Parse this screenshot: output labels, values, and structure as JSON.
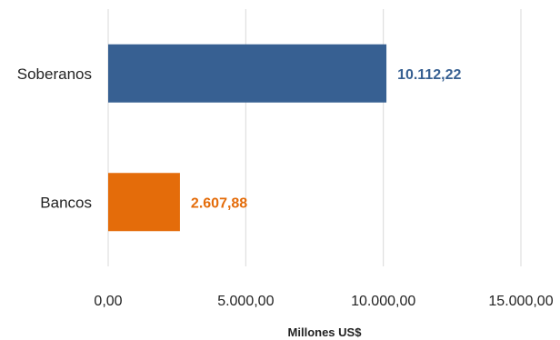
{
  "chart_data": {
    "type": "bar",
    "orientation": "horizontal",
    "categories": [
      "Soberanos",
      "Bancos"
    ],
    "values": [
      10112.22,
      2607.88
    ],
    "value_labels": [
      "10.112,22",
      "2.607,88"
    ],
    "colors": [
      "#376092",
      "#e46c0a"
    ],
    "xlim": [
      0,
      15000
    ],
    "x_ticks": [
      0,
      5000,
      10000,
      15000
    ],
    "x_tick_labels": [
      "0,00",
      "5.000,00",
      "10.000,00",
      "15.000,00"
    ],
    "xlabel": "Millones  US$",
    "grid": true,
    "legend": "none"
  }
}
